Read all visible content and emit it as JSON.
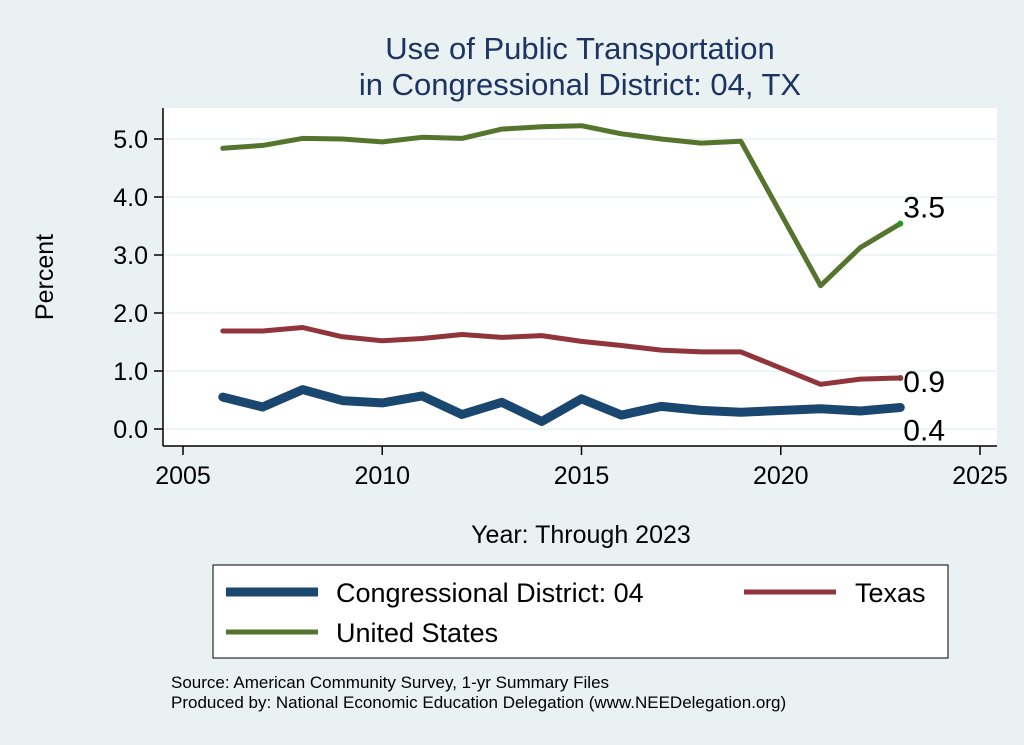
{
  "chart_data": {
    "type": "line",
    "title_line1": "Use of Public Transportation",
    "title_line2": "in Congressional District: 04, TX",
    "xlabel": "Year: Through 2023",
    "ylabel": "Percent",
    "xlim": [
      2005,
      2025
    ],
    "ylim": [
      0,
      5.5
    ],
    "xticks": [
      2005,
      2010,
      2015,
      2020,
      2025
    ],
    "yticks": [
      0,
      1,
      2,
      3,
      4,
      5
    ],
    "ytick_labels": [
      "0.0",
      "1.0",
      "2.0",
      "3.0",
      "4.0",
      "5.0"
    ],
    "grid": true,
    "legend_position": "bottom",
    "x": [
      2006,
      2007,
      2008,
      2009,
      2010,
      2011,
      2012,
      2013,
      2014,
      2015,
      2016,
      2017,
      2018,
      2019,
      2021,
      2022,
      2023
    ],
    "series": [
      {
        "name": "Congressional District: 04",
        "color": "#1a476f",
        "values": [
          0.55,
          0.38,
          0.68,
          0.49,
          0.45,
          0.57,
          0.25,
          0.46,
          0.13,
          0.52,
          0.24,
          0.39,
          0.32,
          0.29,
          0.35,
          0.31,
          0.37
        ],
        "end_label": "0.4"
      },
      {
        "name": "Texas",
        "color": "#90353b",
        "values": [
          1.69,
          1.69,
          1.75,
          1.59,
          1.52,
          1.56,
          1.63,
          1.58,
          1.61,
          1.51,
          1.44,
          1.36,
          1.33,
          1.33,
          0.77,
          0.86,
          0.88
        ],
        "end_label": "0.9"
      },
      {
        "name": "United States",
        "color": "#55752f",
        "values": [
          4.84,
          4.89,
          5.01,
          5.0,
          4.95,
          5.03,
          5.01,
          5.17,
          5.21,
          5.23,
          5.09,
          5.0,
          4.93,
          4.96,
          2.47,
          3.13,
          3.54
        ],
        "end_label": "3.5"
      }
    ]
  },
  "source_line1": "Source: American Community Survey, 1-yr Summary Files",
  "source_line2": "Produced by: National Economic Education Delegation (www.NEEDelegation.org)"
}
